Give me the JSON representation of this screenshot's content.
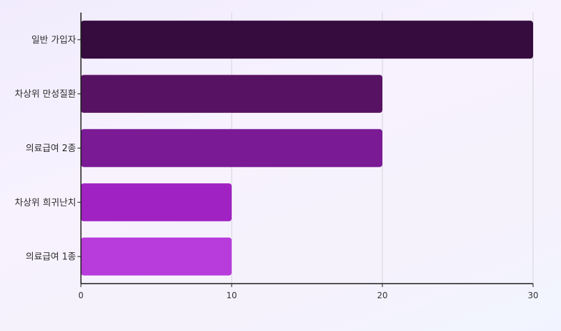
{
  "chart_data": {
    "type": "bar",
    "orientation": "horizontal",
    "categories": [
      "일반 가입자",
      "차상위 만성질환",
      "의료급여 2종",
      "차상위 희귀난치",
      "의료급여 1종"
    ],
    "values": [
      30,
      20,
      20,
      10,
      10
    ],
    "bar_colors": [
      "#360c3e",
      "#581263",
      "#7a1a95",
      "#a122c2",
      "#b83cdc"
    ],
    "xlim": [
      0,
      30
    ],
    "xticks": [
      0,
      10,
      20,
      30
    ],
    "grid": "vertical",
    "legend": "none",
    "title": "",
    "xlabel": "",
    "ylabel": ""
  }
}
